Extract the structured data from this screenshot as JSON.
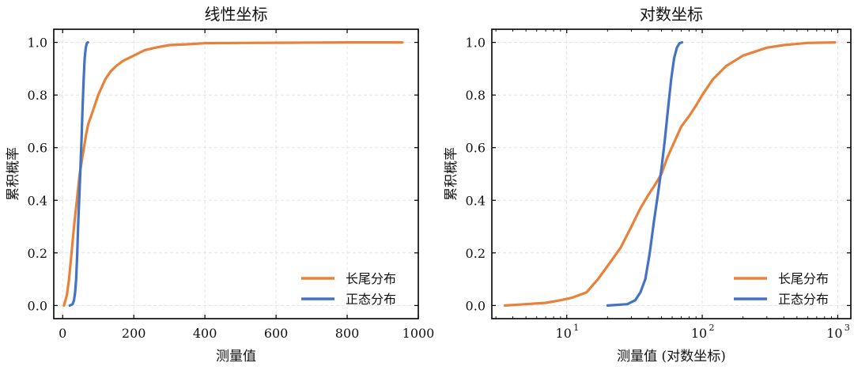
{
  "chart_data": [
    {
      "type": "line",
      "title": "线性坐标",
      "xlabel": "测量值",
      "ylabel": "累积概率",
      "x_scale": "linear",
      "xlim": [
        -25,
        1000
      ],
      "ylim": [
        -0.05,
        1.05
      ],
      "xticks": [
        0,
        200,
        400,
        600,
        800,
        1000
      ],
      "xtick_labels": [
        "0",
        "200",
        "400",
        "600",
        "800",
        "1000"
      ],
      "yticks": [
        0.0,
        0.2,
        0.4,
        0.6,
        0.8,
        1.0
      ],
      "ytick_labels": [
        "0.0",
        "0.2",
        "0.4",
        "0.6",
        "0.8",
        "1.0"
      ],
      "grid": true,
      "legend": "lower-right",
      "series": [
        {
          "name": "长尾分布",
          "color": "#E8823A",
          "x": [
            3.5,
            8,
            12,
            18,
            25,
            32,
            40,
            48,
            55,
            60,
            66,
            72,
            80,
            90,
            100,
            110,
            120,
            135,
            150,
            170,
            200,
            230,
            260,
            300,
            350,
            400,
            500,
            650,
            800,
            955
          ],
          "y": [
            0.0,
            0.02,
            0.04,
            0.1,
            0.2,
            0.3,
            0.4,
            0.5,
            0.56,
            0.6,
            0.65,
            0.69,
            0.72,
            0.76,
            0.8,
            0.83,
            0.86,
            0.89,
            0.91,
            0.93,
            0.95,
            0.97,
            0.98,
            0.99,
            0.993,
            0.997,
            0.998,
            0.999,
            1.0,
            1.0
          ]
        },
        {
          "name": "正态分布",
          "color": "#4472C4",
          "x": [
            20,
            28,
            32,
            35,
            38,
            41,
            44,
            47,
            50,
            53,
            56,
            59,
            62,
            65,
            68,
            71
          ],
          "y": [
            0.0,
            0.005,
            0.02,
            0.05,
            0.1,
            0.2,
            0.32,
            0.42,
            0.52,
            0.63,
            0.75,
            0.86,
            0.94,
            0.98,
            0.997,
            1.0
          ]
        }
      ]
    },
    {
      "type": "line",
      "title": "对数坐标",
      "xlabel": "测量值 (对数坐标)",
      "ylabel": "累积概率",
      "x_scale": "log",
      "xlim": [
        2.8,
        1250
      ],
      "ylim": [
        -0.05,
        1.05
      ],
      "xticks": [
        10,
        100,
        1000
      ],
      "xtick_labels": [
        "10",
        "10",
        "10"
      ],
      "xtick_exponents": [
        "1",
        "2",
        "3"
      ],
      "yticks": [
        0.0,
        0.2,
        0.4,
        0.6,
        0.8,
        1.0
      ],
      "ytick_labels": [
        "0.0",
        "0.2",
        "0.4",
        "0.6",
        "0.8",
        "1.0"
      ],
      "grid": true,
      "legend": "lower-right",
      "series": [
        {
          "name": "长尾分布",
          "color": "#E8823A",
          "x": [
            3.5,
            5,
            7,
            9,
            11,
            14,
            17,
            20,
            25,
            30,
            35,
            40,
            45,
            50,
            55,
            62,
            70,
            80,
            90,
            100,
            120,
            150,
            200,
            300,
            400,
            600,
            955
          ],
          "y": [
            0.0,
            0.005,
            0.01,
            0.02,
            0.03,
            0.05,
            0.1,
            0.15,
            0.22,
            0.3,
            0.37,
            0.42,
            0.46,
            0.5,
            0.56,
            0.62,
            0.68,
            0.72,
            0.76,
            0.8,
            0.86,
            0.91,
            0.95,
            0.98,
            0.99,
            0.998,
            1.0
          ]
        },
        {
          "name": "正态分布",
          "color": "#4472C4",
          "x": [
            20,
            28,
            32,
            35,
            38,
            41,
            44,
            47,
            50,
            53,
            56,
            59,
            62,
            65,
            68,
            71
          ],
          "y": [
            0.0,
            0.005,
            0.02,
            0.05,
            0.1,
            0.2,
            0.32,
            0.42,
            0.52,
            0.63,
            0.75,
            0.86,
            0.94,
            0.98,
            0.997,
            1.0
          ]
        }
      ]
    }
  ]
}
